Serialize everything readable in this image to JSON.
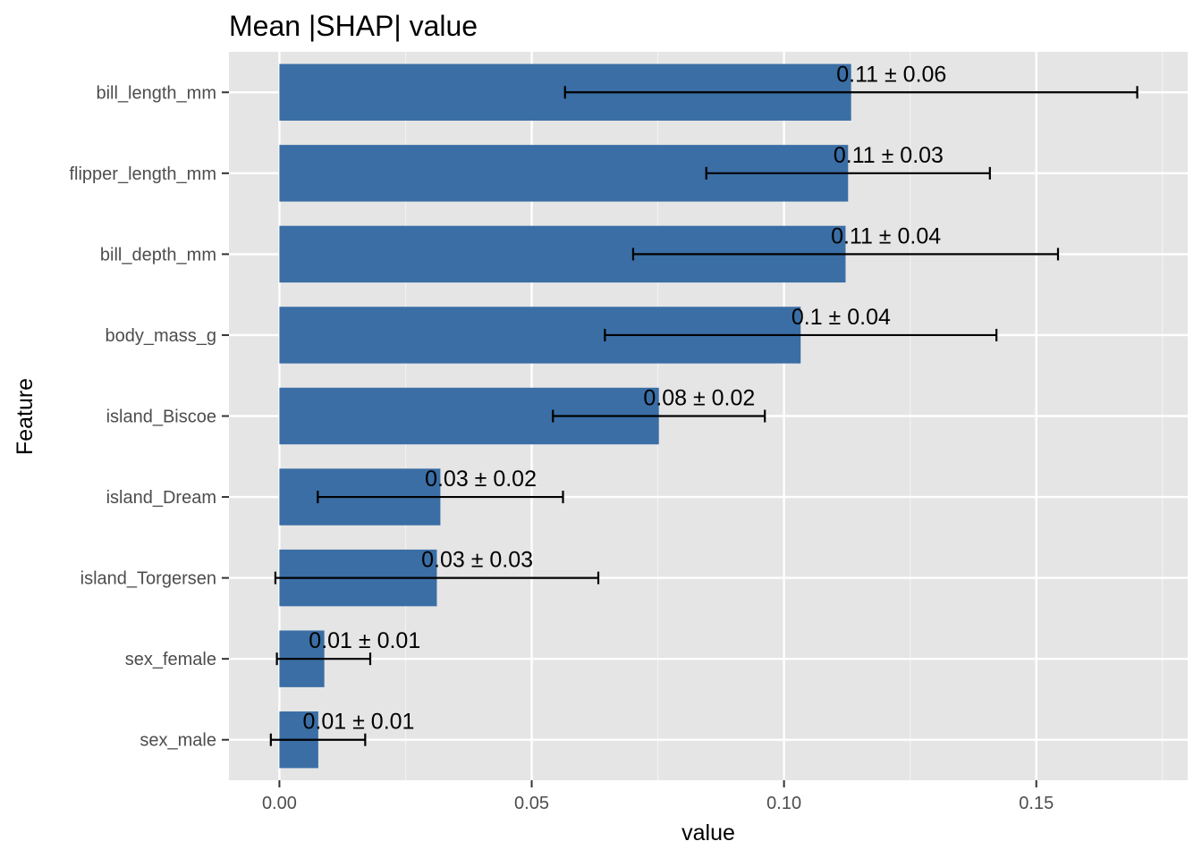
{
  "colors": {
    "bar": "#3a6ea5",
    "panel": "#e5e5e5",
    "grid_major": "#ffffff",
    "grid_minor": "#f2f2f2",
    "errorbar": "#000000",
    "tick_text": "#4d4d4d"
  },
  "chart_data": {
    "type": "bar",
    "orientation": "horizontal",
    "title": "Mean |SHAP| value",
    "xlabel": "value",
    "ylabel": "Feature",
    "xlim": [
      -0.01,
      0.18
    ],
    "xticks": [
      0.0,
      0.05,
      0.1,
      0.15
    ],
    "xtick_labels": [
      "0.00",
      "0.05",
      "0.10",
      "0.15"
    ],
    "grid": true,
    "categories": [
      "bill_length_mm",
      "flipper_length_mm",
      "bill_depth_mm",
      "body_mass_g",
      "island_Biscoe",
      "island_Dream",
      "island_Torgersen",
      "sex_female",
      "sex_male"
    ],
    "values": [
      0.1133,
      0.1127,
      0.1122,
      0.1033,
      0.0752,
      0.0319,
      0.0312,
      0.0089,
      0.0077
    ],
    "error_low": [
      0.0566,
      0.0846,
      0.0701,
      0.0645,
      0.0542,
      0.0076,
      -0.0008,
      -0.0005,
      -0.0017
    ],
    "error_high": [
      0.17,
      0.1408,
      0.1543,
      0.1421,
      0.0962,
      0.0562,
      0.0632,
      0.018,
      0.017
    ],
    "labels": [
      "0.11 ± 0.06",
      "0.11 ± 0.03",
      "0.11 ± 0.04",
      "0.1 ± 0.04",
      "0.08 ± 0.02",
      "0.03 ± 0.02",
      "0.03 ± 0.03",
      "0.01 ± 0.01",
      "0.01 ± 0.01"
    ]
  }
}
